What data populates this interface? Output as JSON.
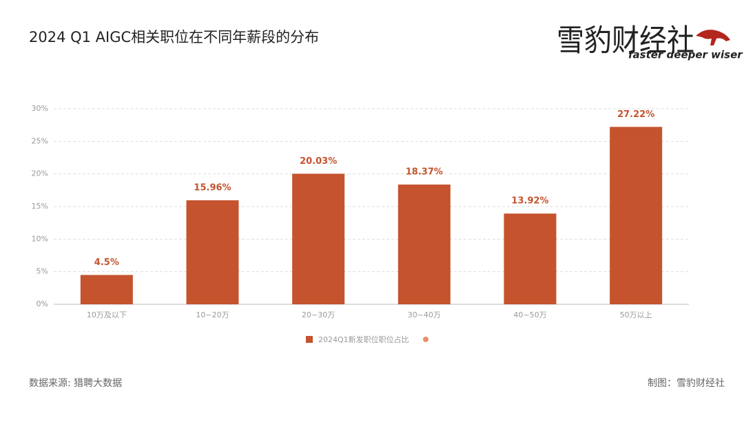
{
  "chart_data": {
    "type": "bar",
    "title": "2024 Q1 AIGC相关职位在不同年薪段的分布",
    "categories": [
      "10万及以下",
      "10~20万",
      "20~30万",
      "30~40万",
      "40~50万",
      "50万以上"
    ],
    "series": [
      {
        "name": "2024Q1新发职位职位占比",
        "color": "#c4532e",
        "values": [
          4.5,
          15.96,
          20.03,
          18.37,
          13.92,
          27.22
        ],
        "value_labels": [
          "4.5%",
          "15.96%",
          "20.03%",
          "18.37%",
          "13.92%",
          "27.22%"
        ]
      }
    ],
    "ylim": [
      0,
      30
    ],
    "yticks": [
      {
        "value": 0,
        "label": "0%"
      },
      {
        "value": 5,
        "label": "5%"
      },
      {
        "value": 10,
        "label": "10%"
      },
      {
        "value": 15,
        "label": "15%"
      },
      {
        "value": 20,
        "label": "20%"
      },
      {
        "value": 25,
        "label": "25%"
      },
      {
        "value": 30,
        "label": "30%"
      }
    ],
    "grid": true
  },
  "logo": {
    "name": "雪豹财经社",
    "slogan": "faster deeper wiser"
  },
  "footer": {
    "source": "数据来源: 猎聘大数据",
    "credit": "制图：雪豹财经社"
  }
}
